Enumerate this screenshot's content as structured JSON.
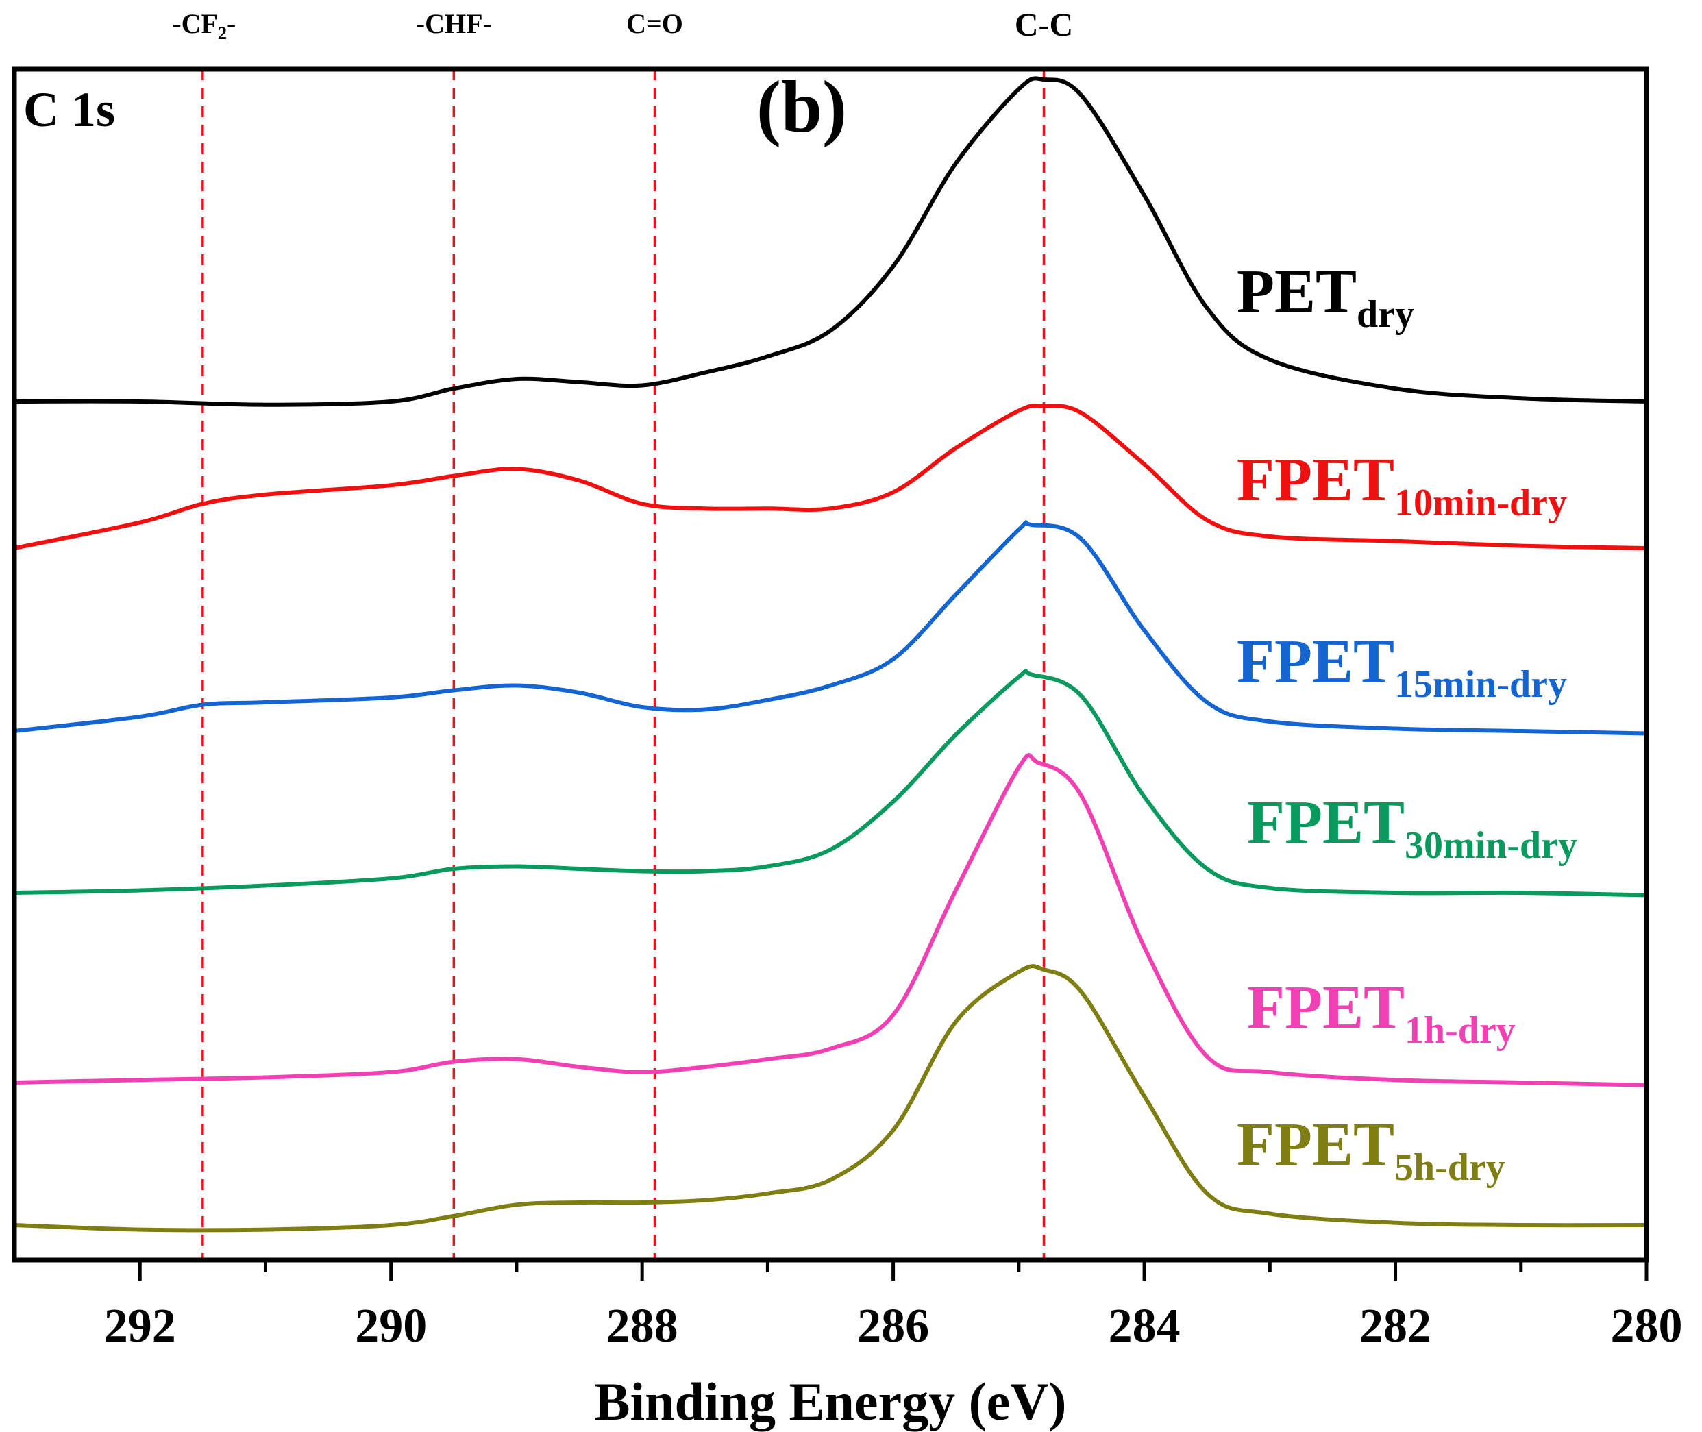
{
  "chart_data": {
    "type": "line",
    "panel_label": "(b)",
    "region_label": "C 1s",
    "xlabel": "Binding Energy (eV)",
    "ylabel": "",
    "xlim": [
      293,
      280
    ],
    "x_reversed": true,
    "x_ticks": [
      292,
      290,
      288,
      286,
      284,
      282,
      280
    ],
    "x_tick_labels": [
      "292",
      "290",
      "288",
      "286",
      "284",
      "282",
      "280"
    ],
    "y_ticks_visible": false,
    "grid": false,
    "reference_lines": [
      {
        "x": 291.5,
        "label": "-CF",
        "label_sub": "2",
        "label_tail": "-",
        "color": "#e8141b"
      },
      {
        "x": 289.5,
        "label": "-CHF-",
        "label_sub": "",
        "label_tail": "",
        "color": "#e8141b"
      },
      {
        "x": 287.9,
        "label": "C=O",
        "label_sub": "",
        "label_tail": "",
        "color": "#e8141b"
      },
      {
        "x": 284.8,
        "label": "C-C",
        "label_sub": "",
        "label_tail": "",
        "color": "#e8141b"
      }
    ],
    "series": [
      {
        "name": "PET",
        "sub": "dry",
        "color": "#000000",
        "x": [
          293,
          292,
          291,
          290,
          289.5,
          289,
          288.5,
          288,
          287.5,
          287,
          286.5,
          286,
          285.5,
          285,
          284.8,
          284.5,
          284,
          283.5,
          283,
          282,
          281,
          280
        ],
        "y": [
          0.0,
          0.0,
          -0.01,
          0.0,
          0.04,
          0.07,
          0.06,
          0.05,
          0.09,
          0.14,
          0.22,
          0.42,
          0.74,
          0.97,
          1.0,
          0.95,
          0.64,
          0.29,
          0.13,
          0.04,
          0.01,
          0.0
        ]
      },
      {
        "name": "FPET",
        "sub": "10min-dry",
        "color": "#f01010",
        "x": [
          293,
          292,
          291.5,
          291,
          290,
          289.5,
          289,
          288.5,
          288,
          287.5,
          287,
          286.5,
          286,
          285.5,
          285,
          284.8,
          284.5,
          284,
          283.5,
          283,
          282,
          281,
          280
        ],
        "y": [
          0.0,
          0.11,
          0.19,
          0.23,
          0.27,
          0.31,
          0.34,
          0.29,
          0.19,
          0.17,
          0.17,
          0.17,
          0.24,
          0.43,
          0.59,
          0.61,
          0.58,
          0.36,
          0.12,
          0.05,
          0.03,
          0.01,
          0.0
        ]
      },
      {
        "name": "FPET",
        "sub": "15min-dry",
        "color": "#1464d2",
        "x": [
          293,
          292,
          291.5,
          291,
          290,
          289.5,
          289,
          288.5,
          288,
          287.5,
          287,
          286.5,
          286,
          285.5,
          285,
          284.9,
          284.5,
          284,
          283.5,
          283,
          282,
          281,
          280
        ],
        "y": [
          0.0,
          0.06,
          0.11,
          0.12,
          0.14,
          0.17,
          0.19,
          0.16,
          0.1,
          0.09,
          0.13,
          0.19,
          0.3,
          0.57,
          0.84,
          0.86,
          0.8,
          0.42,
          0.12,
          0.04,
          0.01,
          0.0,
          -0.01
        ]
      },
      {
        "name": "FPET",
        "sub": "30min-dry",
        "color": "#0a9a5e",
        "x": [
          293,
          292,
          291,
          290,
          289.5,
          289,
          288.5,
          288,
          287.5,
          287,
          286.5,
          286,
          285.5,
          285,
          284.9,
          284.5,
          284,
          283.5,
          283,
          282,
          281,
          280
        ],
        "y": [
          0.0,
          0.01,
          0.03,
          0.06,
          0.1,
          0.11,
          0.1,
          0.09,
          0.09,
          0.11,
          0.18,
          0.38,
          0.66,
          0.9,
          0.91,
          0.82,
          0.4,
          0.1,
          0.02,
          0.0,
          0.0,
          -0.01
        ]
      },
      {
        "name": "FPET",
        "sub": "1h-dry",
        "color": "#f040b4",
        "x": [
          293,
          292,
          291,
          290,
          289.5,
          289,
          288.5,
          288,
          287.5,
          287,
          286.5,
          286,
          285.5,
          285,
          284.85,
          284.5,
          284,
          283.5,
          283,
          282,
          281,
          280
        ],
        "y": [
          0.0,
          0.01,
          0.02,
          0.04,
          0.08,
          0.09,
          0.06,
          0.04,
          0.06,
          0.09,
          0.13,
          0.26,
          0.74,
          1.21,
          1.23,
          1.1,
          0.52,
          0.1,
          0.04,
          0.01,
          0.0,
          -0.01
        ]
      },
      {
        "name": "FPET",
        "sub": "5h-dry",
        "color": "#7e7e12",
        "x": [
          293,
          292,
          291,
          290,
          289.5,
          289,
          288.5,
          288,
          287.5,
          287,
          286.5,
          286,
          285.5,
          285,
          284.8,
          284.5,
          284,
          283.5,
          283,
          282,
          281,
          280
        ],
        "y": [
          0.0,
          -0.02,
          -0.02,
          0.0,
          0.04,
          0.09,
          0.1,
          0.1,
          0.11,
          0.14,
          0.2,
          0.42,
          0.9,
          1.12,
          1.13,
          1.03,
          0.57,
          0.14,
          0.05,
          0.01,
          0.0,
          0.0
        ]
      }
    ]
  }
}
